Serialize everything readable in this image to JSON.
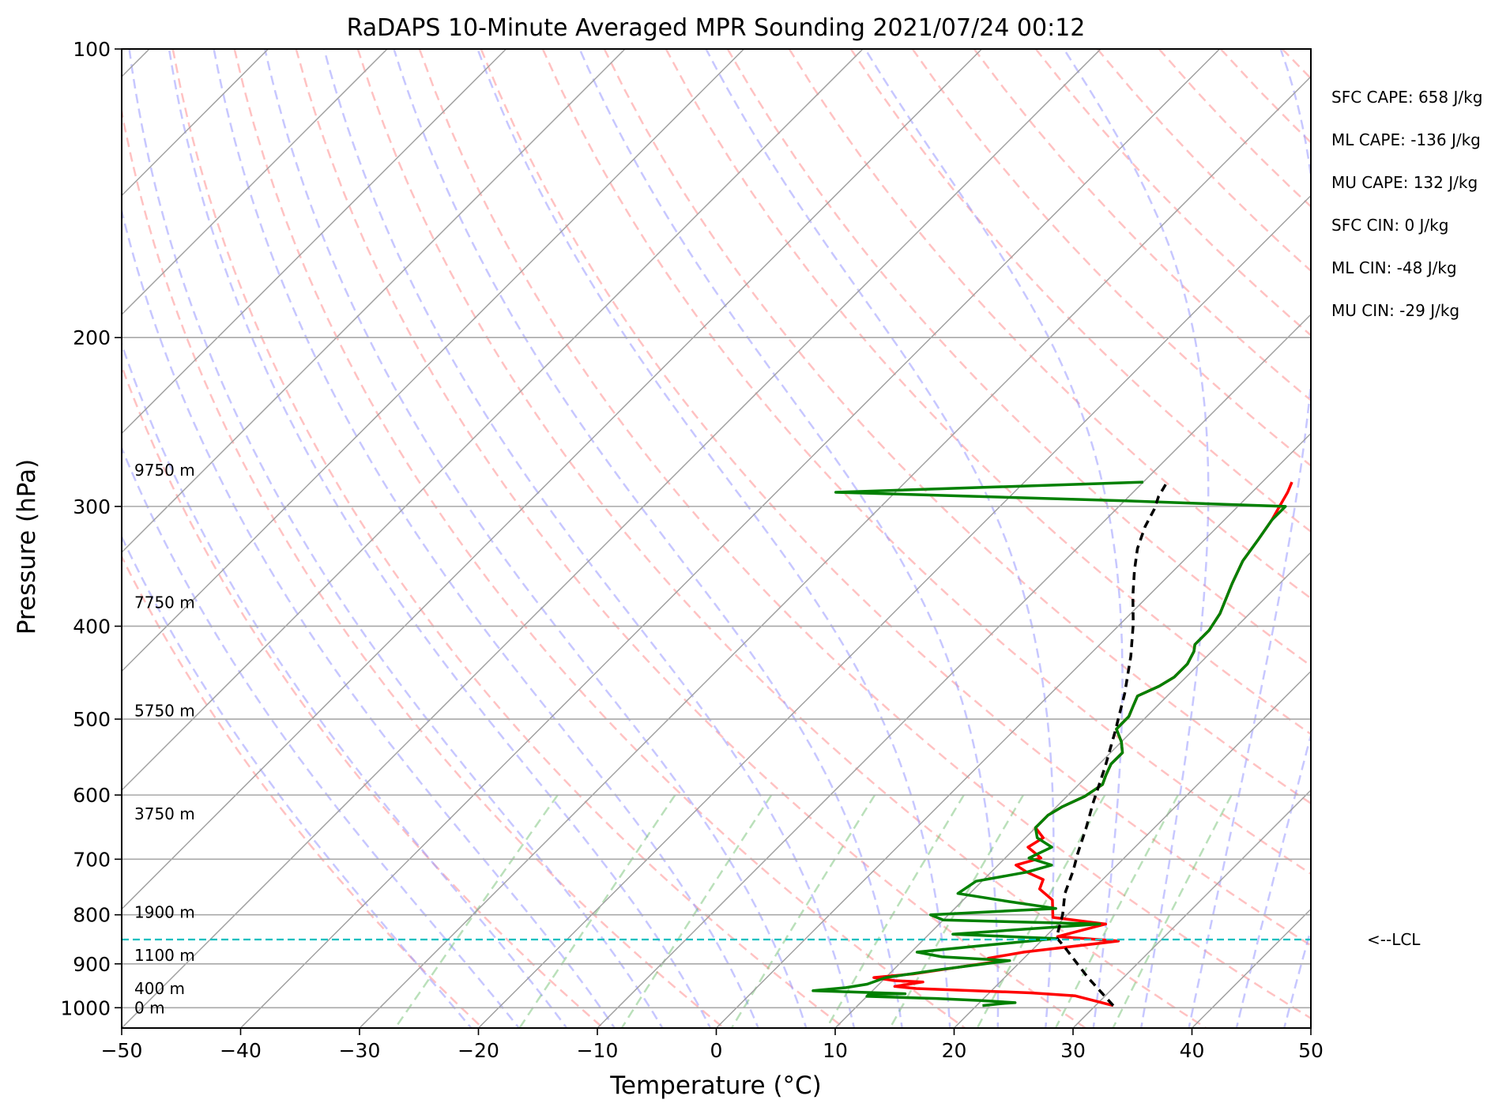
{
  "chart_data": {
    "type": "line",
    "title": "RaDAPS 10-Minute Averaged MPR Sounding 2021/07/24 00:12",
    "xlabel": "Temperature (°C)",
    "ylabel": "Pressure (hPa)",
    "xlim": [
      -50,
      50
    ],
    "ylim": [
      1050,
      100
    ],
    "y_scale": "log",
    "grid": true,
    "skew": "skew-T log-p",
    "xticks": [
      -50,
      -40,
      -30,
      -20,
      -10,
      0,
      10,
      20,
      30,
      40,
      50
    ],
    "xtick_labels": [
      "−50",
      "−40",
      "−30",
      "−20",
      "−10",
      "0",
      "10",
      "20",
      "30",
      "40",
      "50"
    ],
    "yticks": [
      100,
      200,
      300,
      400,
      500,
      600,
      700,
      800,
      900,
      1000
    ],
    "ytick_labels": [
      "100",
      "200",
      "300",
      "400",
      "500",
      "600",
      "700",
      "800",
      "900",
      "1000"
    ],
    "series": [
      {
        "role": "temperature",
        "color": "#ff0000",
        "points": [
          [
            31.5,
            995
          ],
          [
            27.5,
            972
          ],
          [
            23.5,
            965
          ],
          [
            13.5,
            955
          ],
          [
            11.5,
            950
          ],
          [
            13.5,
            940
          ],
          [
            11,
            937
          ],
          [
            9,
            930
          ],
          [
            12,
            922
          ],
          [
            18,
            895
          ],
          [
            17,
            888
          ],
          [
            19.5,
            875
          ],
          [
            26.5,
            852
          ],
          [
            21,
            843
          ],
          [
            24,
            818
          ],
          [
            19,
            805
          ],
          [
            17.5,
            772
          ],
          [
            15.5,
            752
          ],
          [
            15,
            735
          ],
          [
            13,
            722
          ],
          [
            11.5,
            710
          ],
          [
            13,
            698
          ],
          [
            11,
            680
          ],
          [
            11.5,
            665
          ],
          [
            10,
            649
          ],
          [
            10,
            630
          ],
          [
            10.5,
            617
          ],
          [
            11.5,
            602
          ],
          [
            12,
            585
          ],
          [
            11.5,
            572
          ],
          [
            11,
            557
          ],
          [
            11,
            542
          ],
          [
            10,
            528
          ],
          [
            8.5,
            512
          ],
          [
            8.5,
            497
          ],
          [
            8,
            485
          ],
          [
            7.5,
            473
          ],
          [
            8.5,
            462
          ],
          [
            9,
            452
          ],
          [
            9,
            438
          ],
          [
            8.5,
            425
          ],
          [
            8,
            418
          ],
          [
            8,
            404
          ],
          [
            7.5,
            388
          ],
          [
            6,
            361
          ],
          [
            5,
            342
          ],
          [
            4.5,
            325
          ],
          [
            4,
            310
          ],
          [
            3.5,
            300
          ],
          [
            3,
            290
          ],
          [
            2.5,
            283
          ]
        ]
      },
      {
        "role": "dewpoint",
        "color": "#008000",
        "points": [
          [
            20.5,
            995
          ],
          [
            22,
            990
          ],
          [
            23,
            988
          ],
          [
            20,
            983
          ],
          [
            16,
            978
          ],
          [
            10,
            973
          ],
          [
            10,
            968
          ],
          [
            13,
            967
          ],
          [
            5,
            960
          ],
          [
            7.5,
            953
          ],
          [
            9,
            945
          ],
          [
            10,
            930
          ],
          [
            14,
            912
          ],
          [
            19,
            893
          ],
          [
            13,
            885
          ],
          [
            10.5,
            875
          ],
          [
            16,
            860
          ],
          [
            21,
            847
          ],
          [
            12,
            838
          ],
          [
            23.5,
            818
          ],
          [
            10,
            810
          ],
          [
            8.5,
            800
          ],
          [
            18.5,
            788
          ],
          [
            14,
            775
          ],
          [
            9,
            760
          ],
          [
            9.5,
            738
          ],
          [
            13,
            722
          ],
          [
            14.5,
            710
          ],
          [
            12,
            698
          ],
          [
            13,
            680
          ],
          [
            11,
            665
          ],
          [
            10,
            649
          ],
          [
            10,
            630
          ],
          [
            10.5,
            617
          ],
          [
            11.5,
            602
          ],
          [
            12,
            585
          ],
          [
            11.5,
            572
          ],
          [
            11,
            557
          ],
          [
            11,
            542
          ],
          [
            10,
            528
          ],
          [
            8.5,
            512
          ],
          [
            8.5,
            497
          ],
          [
            8,
            485
          ],
          [
            7.5,
            473
          ],
          [
            8.5,
            462
          ],
          [
            9,
            452
          ],
          [
            9,
            438
          ],
          [
            8.5,
            425
          ],
          [
            8,
            418
          ],
          [
            8,
            404
          ],
          [
            7.5,
            388
          ],
          [
            6,
            361
          ],
          [
            5,
            342
          ],
          [
            4.5,
            325
          ],
          [
            4,
            310
          ],
          [
            4,
            300
          ],
          [
            -10,
            296
          ],
          [
            -35,
            290
          ],
          [
            -10,
            283
          ]
        ]
      },
      {
        "role": "parcel",
        "color": "#000000",
        "points": [
          [
            31.5,
            995
          ],
          [
            27,
            930
          ],
          [
            22.3,
            862
          ],
          [
            21,
            845
          ],
          [
            19.6,
            800
          ],
          [
            18,
            760
          ],
          [
            16.8,
            720
          ],
          [
            15.7,
            690
          ],
          [
            14.3,
            650
          ],
          [
            12.7,
            610
          ],
          [
            10.7,
            560
          ],
          [
            8.6,
            515
          ],
          [
            6.2,
            470
          ],
          [
            3.6,
            430
          ],
          [
            1.1,
            398
          ],
          [
            -1.3,
            372
          ],
          [
            -3.3,
            350
          ],
          [
            -4.9,
            332
          ],
          [
            -6.1,
            315
          ],
          [
            -6.8,
            302
          ],
          [
            -7.5,
            293
          ],
          [
            -8,
            283
          ]
        ]
      }
    ],
    "lcl": {
      "pressure": 849,
      "label": "<--LCL",
      "color": "#00bfbf"
    },
    "height_labels": [
      {
        "pressure": 1000,
        "label": "0 m"
      },
      {
        "pressure": 955,
        "label": "400 m"
      },
      {
        "pressure": 882,
        "label": "1100 m"
      },
      {
        "pressure": 795,
        "label": "1900 m"
      },
      {
        "pressure": 628,
        "label": "3750 m"
      },
      {
        "pressure": 490,
        "label": "5750 m"
      },
      {
        "pressure": 378,
        "label": "7750 m"
      },
      {
        "pressure": 275,
        "label": "9750 m"
      }
    ],
    "annotations": [
      "SFC CAPE: 658 J/kg",
      "ML CAPE: -136 J/kg",
      "MU CAPE: 132 J/kg",
      "SFC CIN: 0 J/kg",
      "ML CIN: -48 J/kg",
      "MU CIN: -29 J/kg"
    ],
    "background_lines": {
      "isotherms_color": "#a0a0a0",
      "dry_adiabats_color": "#ff9999",
      "moist_adiabats_color": "#9999ff",
      "mixing_ratio_color": "#66bb66"
    }
  }
}
